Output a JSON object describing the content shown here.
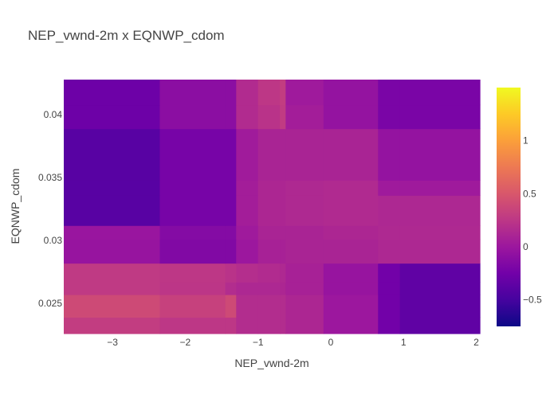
{
  "chart_data": {
    "type": "heatmap",
    "title": "NEP_vwnd-2m x EQNWP_cdom",
    "xlabel": "NEP_vwnd-2m",
    "ylabel": "EQNWP_cdom",
    "xlim": [
      -3.67,
      2.05
    ],
    "ylim": [
      0.0226,
      0.0428
    ],
    "x_ticks": [
      {
        "value": -3,
        "label": "−3"
      },
      {
        "value": -2,
        "label": "−2"
      },
      {
        "value": -1,
        "label": "−1"
      },
      {
        "value": 0,
        "label": "0"
      },
      {
        "value": 1,
        "label": "1"
      },
      {
        "value": 2,
        "label": "2"
      }
    ],
    "y_ticks": [
      {
        "value": 0.025,
        "label": "0.025"
      },
      {
        "value": 0.03,
        "label": "0.03"
      },
      {
        "value": 0.035,
        "label": "0.035"
      },
      {
        "value": 0.04,
        "label": "0.04"
      }
    ],
    "x_edges": [
      -3.67,
      -2.35,
      -1.45,
      -1.3,
      -1.0,
      -0.7,
      -0.62,
      -0.1,
      0.65,
      0.95,
      2.05
    ],
    "y_edges": [
      0.0226,
      0.0239,
      0.0257,
      0.0267,
      0.0282,
      0.0301,
      0.0312,
      0.0336,
      0.0348,
      0.0389,
      0.0408,
      0.0428
    ],
    "z": [
      [
        0.3,
        0.25,
        0.25,
        0.17,
        0.17,
        0.17,
        0.12,
        0.0,
        -0.25,
        -0.35
      ],
      [
        0.4,
        0.33,
        0.4,
        0.17,
        0.17,
        0.17,
        0.12,
        0.0,
        -0.25,
        -0.35
      ],
      [
        0.27,
        0.24,
        0.17,
        0.13,
        0.13,
        0.12,
        0.08,
        -0.03,
        -0.25,
        -0.35
      ],
      [
        0.27,
        0.25,
        0.22,
        0.18,
        0.16,
        0.14,
        0.08,
        -0.03,
        -0.25,
        -0.35
      ],
      [
        -0.03,
        -0.16,
        -0.16,
        0.0,
        0.08,
        0.08,
        0.1,
        0.1,
        0.13,
        0.13
      ],
      [
        -0.02,
        -0.14,
        -0.14,
        0.02,
        0.1,
        0.1,
        0.1,
        0.12,
        0.14,
        0.14
      ],
      [
        -0.4,
        -0.22,
        -0.22,
        0.05,
        0.12,
        0.12,
        0.14,
        0.15,
        0.13,
        0.13
      ],
      [
        -0.4,
        -0.22,
        -0.22,
        0.05,
        0.12,
        0.12,
        0.14,
        0.15,
        0.02,
        0.02
      ],
      [
        -0.4,
        -0.22,
        -0.22,
        0.03,
        0.1,
        0.1,
        0.1,
        0.1,
        -0.05,
        -0.05
      ],
      [
        -0.28,
        -0.1,
        -0.1,
        0.16,
        0.22,
        0.28,
        0.05,
        -0.05,
        -0.2,
        -0.2
      ],
      [
        -0.28,
        -0.1,
        -0.1,
        0.16,
        0.25,
        0.3,
        0.02,
        -0.05,
        -0.2,
        -0.2
      ]
    ],
    "zlim": [
      -0.75,
      1.5
    ],
    "colorbar_ticks": [
      {
        "value": -0.5,
        "label": "−0.5"
      },
      {
        "value": 0,
        "label": "0"
      },
      {
        "value": 0.5,
        "label": "0.5"
      },
      {
        "value": 1,
        "label": "1"
      }
    ],
    "colorscale": [
      [
        0.0,
        "#0d0887"
      ],
      [
        0.1111,
        "#46039f"
      ],
      [
        0.2222,
        "#7201a8"
      ],
      [
        0.3333,
        "#9c179e"
      ],
      [
        0.4444,
        "#bd3786"
      ],
      [
        0.5556,
        "#d8576b"
      ],
      [
        0.6667,
        "#ed7953"
      ],
      [
        0.7778,
        "#fb9f3a"
      ],
      [
        0.8889,
        "#fdca26"
      ],
      [
        1.0,
        "#f0f921"
      ]
    ]
  },
  "colors": {
    "title": "#444444",
    "axis_text": "#444444",
    "background": "#ffffff"
  }
}
